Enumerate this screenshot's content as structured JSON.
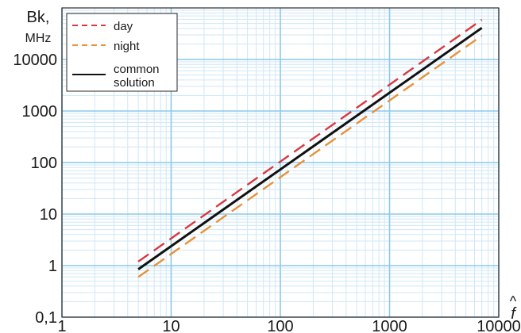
{
  "chart_data": {
    "type": "line",
    "title": "",
    "xlabel": "f",
    "xlabel_hat": "^",
    "ylabel_line1": "Bk,",
    "ylabel_line2": "MHz",
    "x_scale": "log",
    "y_scale": "log",
    "xlim": [
      1,
      10000
    ],
    "ylim": [
      0.1,
      100000
    ],
    "x_ticks": [
      {
        "value": 1,
        "label": "1"
      },
      {
        "value": 10,
        "label": "10"
      },
      {
        "value": 100,
        "label": "100"
      },
      {
        "value": 1000,
        "label": "1000"
      },
      {
        "value": 10000,
        "label": "10000"
      }
    ],
    "y_ticks": [
      {
        "value": 0.1,
        "label": "0,1"
      },
      {
        "value": 1,
        "label": "1"
      },
      {
        "value": 10,
        "label": "10"
      },
      {
        "value": 100,
        "label": "100"
      },
      {
        "value": 1000,
        "label": "1000"
      },
      {
        "value": 10000,
        "label": "10000"
      }
    ],
    "grid": true,
    "legend": {
      "position": "top-left",
      "entries": [
        {
          "series": 0,
          "label_lines": [
            "day"
          ]
        },
        {
          "series": 1,
          "label_lines": [
            "night"
          ]
        },
        {
          "series": 2,
          "label_lines": [
            "common",
            "solution"
          ]
        }
      ]
    },
    "series": [
      {
        "name": "day",
        "x": [
          5,
          7000
        ],
        "y": [
          1.2,
          59000
        ],
        "color": "#d8393f",
        "dash": "dashed"
      },
      {
        "name": "night",
        "x": [
          5,
          7000
        ],
        "y": [
          0.6,
          29000
        ],
        "color": "#e8913a",
        "dash": "dashed"
      },
      {
        "name": "common solution",
        "x": [
          5,
          7000
        ],
        "y": [
          0.85,
          41000
        ],
        "color": "#111111",
        "dash": "solid"
      }
    ],
    "colors": {
      "grid_major": "#8cc8ea",
      "grid_minor": "#cfe7f6",
      "frame": "#2a2a2a"
    }
  }
}
